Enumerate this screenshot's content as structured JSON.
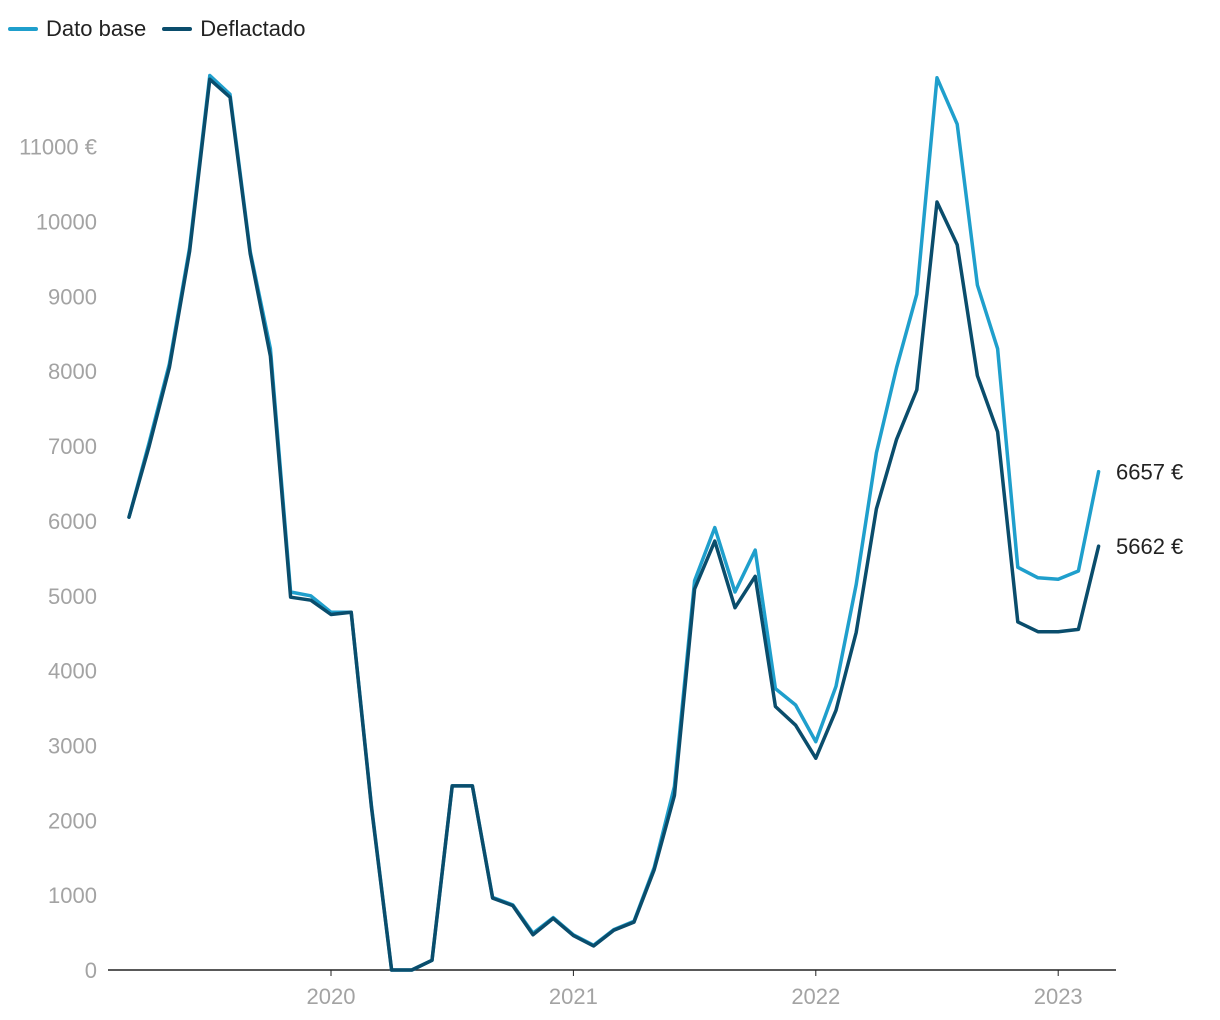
{
  "chart_data": {
    "type": "line",
    "title": "",
    "xlabel": "",
    "ylabel": "",
    "ylim": [
      0,
      11900
    ],
    "y_ticks": [
      0,
      1000,
      2000,
      3000,
      4000,
      5000,
      6000,
      7000,
      8000,
      9000,
      10000,
      11000
    ],
    "y_tick_labels": [
      "0",
      "1000",
      "2000",
      "3000",
      "4000",
      "5000",
      "6000",
      "7000",
      "8000",
      "9000",
      "10000",
      "11000 €"
    ],
    "x_ticks": [
      "2020",
      "2021",
      "2022",
      "2023"
    ],
    "x_start": "2019-03",
    "legend_position": "top-left",
    "grid": false,
    "series": [
      {
        "name": "Dato base",
        "color": "#1f9fcc",
        "end_label": "6657 €",
        "values": [
          6050,
          7050,
          8100,
          9650,
          11950,
          11700,
          9600,
          8300,
          5050,
          5000,
          4780,
          4780,
          2200,
          0,
          0,
          130,
          2460,
          2460,
          970,
          870,
          490,
          700,
          470,
          330,
          540,
          650,
          1370,
          2450,
          5200,
          5910,
          5050,
          5610,
          3760,
          3540,
          3050,
          3790,
          5150,
          6910,
          8050,
          9030,
          11920,
          11300,
          9150,
          8300,
          5380,
          5240,
          5220,
          5330,
          6657
        ]
      },
      {
        "name": "Deflactado",
        "color": "#0a4d6c",
        "end_label": "5662 €",
        "values": [
          6050,
          7000,
          8050,
          9600,
          11900,
          11660,
          9570,
          8200,
          4980,
          4940,
          4750,
          4780,
          2180,
          0,
          0,
          130,
          2460,
          2460,
          960,
          860,
          470,
          690,
          460,
          320,
          530,
          640,
          1340,
          2330,
          5090,
          5730,
          4840,
          5260,
          3520,
          3270,
          2830,
          3470,
          4510,
          6160,
          7090,
          7750,
          10260,
          9690,
          7940,
          7190,
          4650,
          4520,
          4520,
          4550,
          5662
        ]
      }
    ]
  }
}
